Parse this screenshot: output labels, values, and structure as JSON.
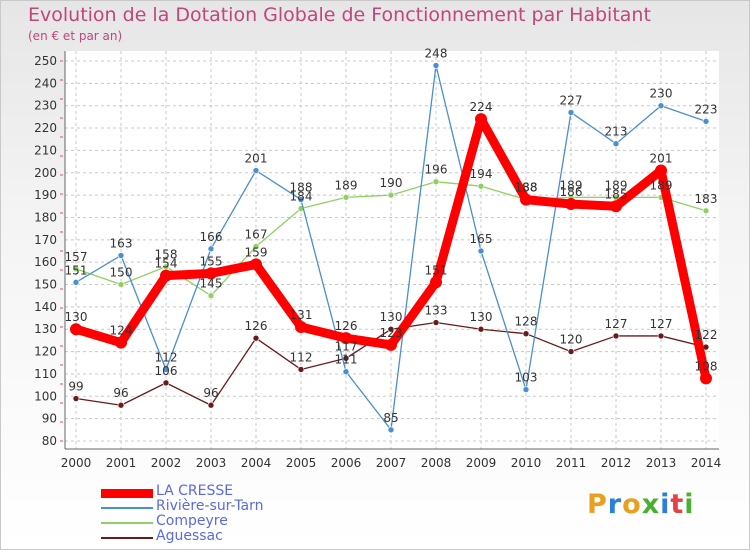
{
  "header": {
    "title": "Evolution de la Dotation Globale de Fonctionnement par Habitant",
    "subtitle": "(en € et par an)"
  },
  "logo": {
    "text": "Proxiti"
  },
  "chart_data": {
    "type": "line",
    "title": "Evolution de la Dotation Globale de Fonctionnement par Habitant",
    "subtitle": "(en € et par an)",
    "x": [
      "2000",
      "2001",
      "2002",
      "2003",
      "2004",
      "2005",
      "2006",
      "2007",
      "2008",
      "2009",
      "2010",
      "2011",
      "2012",
      "2013",
      "2014"
    ],
    "ylim": [
      80,
      250
    ],
    "yticks": [
      80,
      90,
      100,
      110,
      120,
      130,
      140,
      150,
      160,
      170,
      180,
      190,
      200,
      210,
      220,
      230,
      240,
      250
    ],
    "grid": true,
    "legend_position": "bottom-left",
    "series": [
      {
        "name": "LA CRESSE",
        "color": "#ff0000",
        "values": [
          130,
          124,
          154,
          155,
          159,
          131,
          126,
          123,
          151,
          224,
          188,
          186,
          185,
          201,
          108
        ]
      },
      {
        "name": "Rivière-sur-Tarn",
        "color": "#4a8fd0",
        "values": [
          151,
          163,
          112,
          166,
          201,
          188,
          111,
          85,
          248,
          165,
          103,
          227,
          213,
          230,
          223
        ]
      },
      {
        "name": "Compeyre",
        "color": "#90d060",
        "values": [
          157,
          150,
          158,
          145,
          167,
          184,
          189,
          190,
          196,
          194,
          188,
          189,
          189,
          189,
          183
        ]
      },
      {
        "name": "Aguessac",
        "color": "#6b1a1a",
        "values": [
          99,
          96,
          106,
          96,
          126,
          112,
          117,
          130,
          133,
          130,
          128,
          120,
          127,
          127,
          122
        ]
      }
    ]
  }
}
